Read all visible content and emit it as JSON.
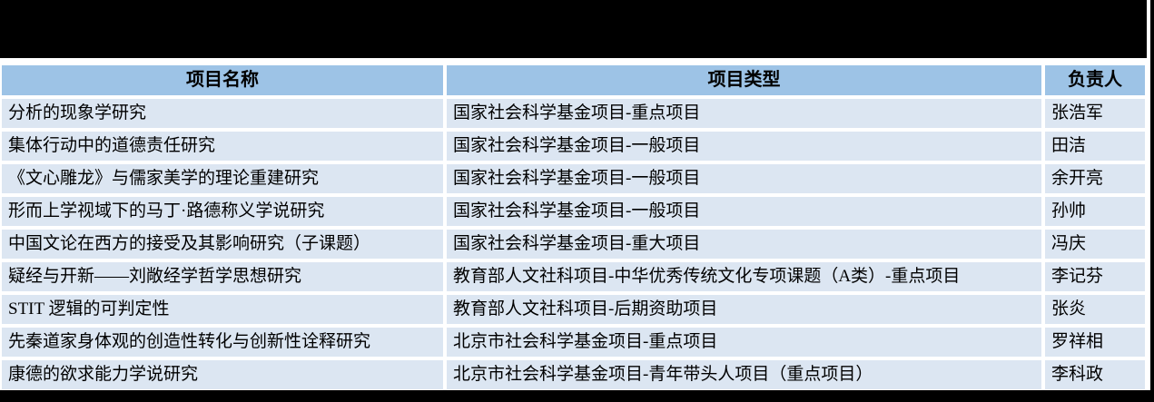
{
  "colors": {
    "header_bg": "#9dc3e6",
    "row_bg": "#dce6f2",
    "banner": "#000000",
    "text": "#000000"
  },
  "banner": {
    "top_label": "redacted-black-banner",
    "bottom_label": "redacted-black-bar"
  },
  "table": {
    "headers": [
      "项目名称",
      "项目类型",
      "负责人"
    ],
    "rows": [
      {
        "name": "分析的现象学研究",
        "type": "国家社会科学基金项目-重点项目",
        "leader": "张浩军"
      },
      {
        "name": "集体行动中的道德责任研究",
        "type": "国家社会科学基金项目-一般项目",
        "leader": "田洁"
      },
      {
        "name": "《文心雕龙》与儒家美学的理论重建研究",
        "type": "国家社会科学基金项目-一般项目",
        "leader": "余开亮"
      },
      {
        "name": "形而上学视域下的马丁·路德称义学说研究",
        "type": "国家社会科学基金项目-一般项目",
        "leader": "孙帅"
      },
      {
        "name": "中国文论在西方的接受及其影响研究（子课题）",
        "type": "国家社会科学基金项目-重大项目",
        "leader": "冯庆"
      },
      {
        "name": "疑经与开新——刘敞经学哲学思想研究",
        "type": "教育部人文社科项目-中华优秀传统文化专项课题（A类）-重点项目",
        "leader": "李记芬"
      },
      {
        "name": "STIT 逻辑的可判定性",
        "type": "教育部人文社科项目-后期资助项目",
        "leader": "张炎"
      },
      {
        "name": "先秦道家身体观的创造性转化与创新性诠释研究",
        "type": "北京市社会科学基金项目-重点项目",
        "leader": "罗祥相"
      },
      {
        "name": "康德的欲求能力学说研究",
        "type": "北京市社会科学基金项目-青年带头人项目（重点项目）",
        "leader": "李科政"
      }
    ]
  }
}
